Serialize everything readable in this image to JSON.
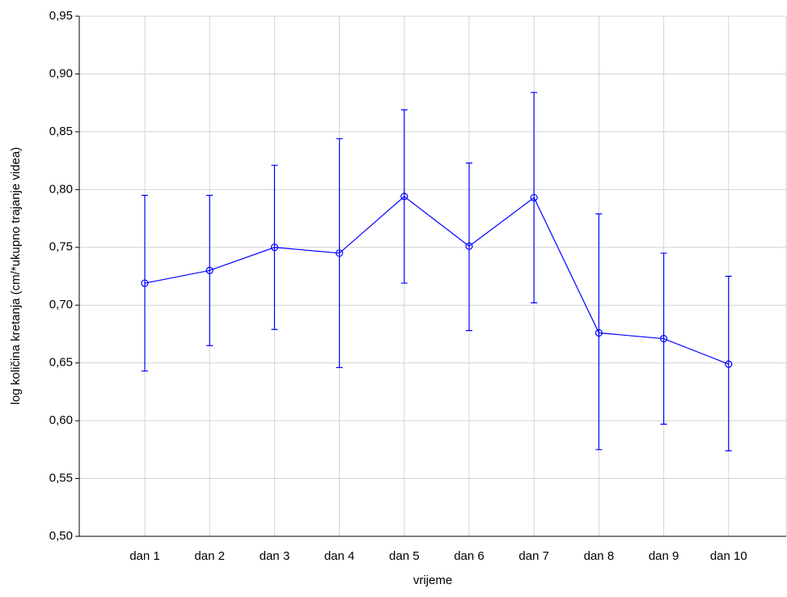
{
  "chart_data": {
    "type": "line",
    "x_label": "vrijeme",
    "y_label": "log količina kretanja (cm/*ukupno trajanje videa)",
    "categories": [
      "dan 1",
      "dan 2",
      "dan 3",
      "dan 4",
      "dan 5",
      "dan 6",
      "dan 7",
      "dan 8",
      "dan 9",
      "dan 10"
    ],
    "series": [
      {
        "color": "#0000ff",
        "values": [
          0.719,
          0.73,
          0.75,
          0.745,
          0.794,
          0.751,
          0.793,
          0.676,
          0.671,
          0.649
        ],
        "lower": [
          0.643,
          0.665,
          0.679,
          0.646,
          0.719,
          0.678,
          0.702,
          0.575,
          0.597,
          0.574
        ],
        "upper": [
          0.795,
          0.795,
          0.821,
          0.844,
          0.869,
          0.823,
          0.884,
          0.779,
          0.745,
          0.725
        ]
      }
    ],
    "ylim": [
      0.5,
      0.95
    ],
    "yticks": [
      {
        "value": 0.5,
        "label": "0,50"
      },
      {
        "value": 0.55,
        "label": "0,55"
      },
      {
        "value": 0.6,
        "label": "0,60"
      },
      {
        "value": 0.65,
        "label": "0,65"
      },
      {
        "value": 0.7,
        "label": "0,70"
      },
      {
        "value": 0.75,
        "label": "0,75"
      },
      {
        "value": 0.8,
        "label": "0,80"
      },
      {
        "value": 0.85,
        "label": "0,85"
      },
      {
        "value": 0.9,
        "label": "0,90"
      },
      {
        "value": 0.95,
        "label": "0,95"
      }
    ],
    "grid": true
  }
}
